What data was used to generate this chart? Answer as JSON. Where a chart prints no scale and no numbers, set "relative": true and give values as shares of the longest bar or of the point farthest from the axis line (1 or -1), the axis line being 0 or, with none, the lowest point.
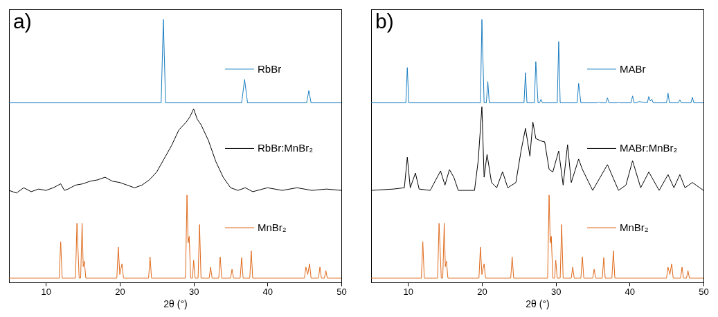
{
  "chart_data": [
    {
      "type": "line",
      "title": "a)",
      "xlabel": "2θ (°)",
      "relative": true,
      "legend": "right",
      "xlim": [
        5,
        50
      ],
      "xticks": [
        10,
        20,
        30,
        40,
        50
      ],
      "series": [
        {
          "name": "RbBr",
          "color": "#1a7dc0",
          "x": [
            5,
            25.6,
            25.9,
            26.2,
            36.5,
            36.9,
            37.3,
            45.3,
            45.6,
            45.9,
            50
          ],
          "values": [
            0.683,
            0.683,
            1.0,
            0.683,
            0.683,
            0.772,
            0.683,
            0.683,
            0.73,
            0.683,
            0.683
          ]
        },
        {
          "name": "RbBr:MnBr₂",
          "color": "#000000",
          "x": [
            5,
            6,
            7,
            8,
            9,
            10,
            11,
            12,
            12.5,
            13,
            14,
            15,
            16,
            17,
            18,
            19,
            20,
            21,
            22,
            23,
            24,
            25,
            26,
            27,
            28,
            29,
            29.5,
            30,
            30.5,
            31,
            32,
            33,
            34,
            35,
            36,
            37,
            38,
            40,
            42,
            44,
            46,
            48,
            50
          ],
          "values": [
            0.35,
            0.34,
            0.36,
            0.345,
            0.355,
            0.35,
            0.36,
            0.375,
            0.35,
            0.355,
            0.37,
            0.375,
            0.385,
            0.39,
            0.4,
            0.385,
            0.38,
            0.37,
            0.36,
            0.37,
            0.39,
            0.42,
            0.47,
            0.52,
            0.58,
            0.61,
            0.63,
            0.66,
            0.62,
            0.6,
            0.54,
            0.46,
            0.4,
            0.36,
            0.35,
            0.36,
            0.345,
            0.36,
            0.35,
            0.36,
            0.35,
            0.355,
            0.35
          ]
        },
        {
          "name": "MnBr₂",
          "color": "#e0691a",
          "x": [
            5,
            11.8,
            12.0,
            12.2,
            14.0,
            14.2,
            14.5,
            14.7,
            14.9,
            15.05,
            15.2,
            15.4,
            19.6,
            19.8,
            20.0,
            20.3,
            20.5,
            23.9,
            24.1,
            24.3,
            28.9,
            29.1,
            29.25,
            29.4,
            29.6,
            29.85,
            30.0,
            30.2,
            30.6,
            30.8,
            31.0,
            32.1,
            32.3,
            32.5,
            33.4,
            33.6,
            33.8,
            35.0,
            35.2,
            35.4,
            36.3,
            36.5,
            36.7,
            37.6,
            37.8,
            38.0,
            45.0,
            45.2,
            45.45,
            45.7,
            45.9,
            46.9,
            47.1,
            47.3,
            47.7,
            47.9,
            48.1,
            50
          ],
          "values": [
            0.016,
            0.016,
            0.154,
            0.016,
            0.016,
            0.225,
            0.016,
            0.016,
            0.225,
            0.06,
            0.081,
            0.016,
            0.016,
            0.134,
            0.03,
            0.071,
            0.016,
            0.016,
            0.097,
            0.016,
            0.016,
            0.332,
            0.15,
            0.175,
            0.016,
            0.016,
            0.084,
            0.016,
            0.016,
            0.22,
            0.016,
            0.016,
            0.058,
            0.016,
            0.016,
            0.097,
            0.016,
            0.016,
            0.05,
            0.016,
            0.016,
            0.094,
            0.016,
            0.016,
            0.12,
            0.016,
            0.016,
            0.058,
            0.03,
            0.071,
            0.016,
            0.016,
            0.058,
            0.016,
            0.016,
            0.045,
            0.016,
            0.016
          ]
        }
      ]
    },
    {
      "type": "line",
      "title": "b)",
      "xlabel": "2θ (°)",
      "relative": true,
      "legend": "right",
      "xlim": [
        5,
        50
      ],
      "xticks": [
        10,
        20,
        30,
        40,
        50
      ],
      "series": [
        {
          "name": "MABr",
          "color": "#1a7dc0",
          "x": [
            5,
            9.7,
            9.9,
            10.1,
            19.8,
            20.0,
            20.3,
            20.6,
            20.8,
            21.0,
            25.7,
            25.9,
            26.1,
            27.1,
            27.3,
            27.6,
            27.8,
            28.0,
            28.2,
            30.2,
            30.4,
            30.6,
            32.9,
            33.1,
            33.4,
            35.6,
            35.8,
            36.0,
            36.8,
            37.0,
            37.2,
            38.3,
            38.5,
            38.7,
            40.2,
            40.4,
            40.6,
            41.0,
            41.2,
            42.4,
            42.6,
            42.8,
            43.0,
            43.2,
            45.0,
            45.2,
            45.4,
            46.6,
            46.8,
            47.0,
            48.3,
            48.5,
            48.7,
            50
          ],
          "values": [
            0.683,
            0.683,
            0.817,
            0.683,
            0.683,
            1.0,
            0.683,
            0.683,
            0.764,
            0.683,
            0.683,
            0.798,
            0.683,
            0.683,
            0.84,
            0.683,
            0.683,
            0.696,
            0.683,
            0.683,
            0.916,
            0.683,
            0.683,
            0.757,
            0.683,
            0.683,
            0.686,
            0.683,
            0.683,
            0.702,
            0.683,
            0.683,
            0.685,
            0.683,
            0.683,
            0.709,
            0.683,
            0.683,
            0.688,
            0.683,
            0.707,
            0.69,
            0.697,
            0.683,
            0.683,
            0.72,
            0.683,
            0.683,
            0.695,
            0.683,
            0.683,
            0.704,
            0.683,
            0.683
          ]
        },
        {
          "name": "MABr:MnBr₂",
          "color": "#000000",
          "x": [
            5,
            8,
            9.5,
            9.9,
            10.3,
            11.0,
            11.5,
            13,
            14.4,
            15.0,
            15.6,
            16.2,
            16.8,
            19.0,
            19.5,
            20.0,
            20.3,
            20.7,
            21.3,
            22.0,
            22.8,
            23.5,
            24.6,
            25.3,
            25.9,
            26.5,
            26.9,
            27.3,
            28.1,
            28.5,
            29.1,
            29.6,
            30.4,
            31.0,
            31.6,
            32.1,
            33.1,
            33.6,
            35.0,
            37.0,
            38.5,
            39.5,
            40.4,
            41.5,
            42.6,
            44.0,
            45.2,
            46.0,
            46.8,
            47.5,
            48.5,
            50
          ],
          "values": [
            0.35,
            0.355,
            0.36,
            0.476,
            0.36,
            0.416,
            0.355,
            0.35,
            0.424,
            0.37,
            0.429,
            0.4,
            0.35,
            0.35,
            0.463,
            0.668,
            0.4,
            0.487,
            0.38,
            0.36,
            0.421,
            0.36,
            0.38,
            0.5,
            0.586,
            0.48,
            0.61,
            0.547,
            0.537,
            0.535,
            0.43,
            0.42,
            0.5,
            0.37,
            0.524,
            0.38,
            0.469,
            0.43,
            0.35,
            0.448,
            0.35,
            0.37,
            0.463,
            0.36,
            0.42,
            0.35,
            0.41,
            0.36,
            0.41,
            0.36,
            0.38,
            0.35
          ]
        },
        {
          "name": "MnBr₂",
          "color": "#e0691a",
          "x": [
            5,
            11.8,
            12.0,
            12.2,
            14.0,
            14.2,
            14.5,
            14.7,
            14.9,
            15.05,
            15.2,
            15.4,
            19.6,
            19.8,
            20.0,
            20.3,
            20.5,
            23.9,
            24.1,
            24.3,
            28.9,
            29.1,
            29.25,
            29.4,
            29.6,
            29.85,
            30.0,
            30.2,
            30.6,
            30.8,
            31.0,
            32.1,
            32.3,
            32.5,
            33.4,
            33.6,
            33.8,
            35.0,
            35.2,
            35.4,
            36.3,
            36.5,
            36.7,
            37.6,
            37.8,
            38.0,
            45.0,
            45.2,
            45.45,
            45.7,
            45.9,
            46.9,
            47.1,
            47.3,
            47.7,
            47.9,
            48.1,
            50
          ],
          "values": [
            0.016,
            0.016,
            0.154,
            0.016,
            0.016,
            0.225,
            0.016,
            0.016,
            0.225,
            0.06,
            0.081,
            0.016,
            0.016,
            0.134,
            0.03,
            0.071,
            0.016,
            0.016,
            0.097,
            0.016,
            0.016,
            0.332,
            0.15,
            0.175,
            0.016,
            0.016,
            0.084,
            0.016,
            0.016,
            0.22,
            0.016,
            0.016,
            0.058,
            0.016,
            0.016,
            0.097,
            0.016,
            0.016,
            0.05,
            0.016,
            0.016,
            0.094,
            0.016,
            0.016,
            0.12,
            0.016,
            0.016,
            0.058,
            0.03,
            0.071,
            0.016,
            0.016,
            0.058,
            0.016,
            0.016,
            0.045,
            0.016,
            0.016
          ]
        }
      ]
    }
  ]
}
